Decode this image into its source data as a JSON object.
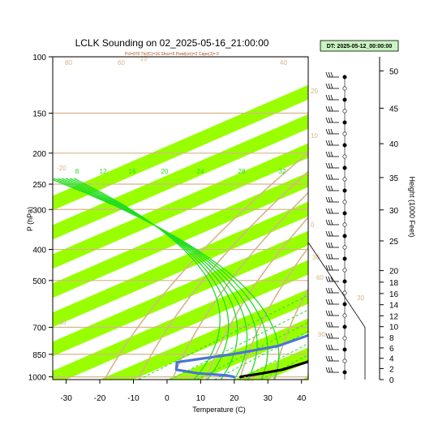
{
  "chart_data": {
    "type": "line",
    "title": "LCLK Sounding on 02_2025-05-16_21:00:00",
    "subtitle": "Pcl=970 Tlcl(C)=16 Shox=6 Pwat(cm)=2 Cape(J)= 0",
    "datetime_badge": "DT: 2025-05-12_00:00:00",
    "xlabel": "Temperature (C)",
    "ylabel": "P (hPa)",
    "y2label": "Height (1000 Feet)",
    "xlim": [
      -34,
      42
    ],
    "ylim": [
      1020,
      100
    ],
    "x_ticks": [
      -30,
      -20,
      -10,
      0,
      10,
      20,
      30,
      40
    ],
    "y_ticks": [
      100,
      150,
      200,
      250,
      300,
      400,
      500,
      700,
      850,
      1000
    ],
    "height_ticks": [
      0,
      2,
      4,
      6,
      8,
      10,
      12,
      14,
      16,
      18,
      20,
      25,
      30,
      35,
      40,
      45,
      50
    ],
    "mixing_ratio_labels": [
      "8",
      "12",
      "16",
      "20",
      "24",
      "28",
      "32"
    ],
    "isotherm_labels": [
      "-30",
      "-20",
      "-10",
      "0",
      "10",
      "20",
      "30"
    ],
    "adiabat_labels": [
      "80",
      "100",
      "60",
      "30",
      "40",
      "60",
      "90"
    ],
    "series": [
      {
        "name": "",
        "color": "#000000",
        "x": [
          20,
          24,
          27.5,
          29.5,
          30,
          29,
          26,
          20,
          15,
          11,
          8,
          5,
          2,
          -1,
          -4,
          -5.5,
          -6,
          -5,
          -1.5,
          3.5,
          8.5,
          10,
          10.5
        ],
        "y": [
          1000,
          975,
          950,
          900,
          850,
          800,
          750,
          700,
          650,
          600,
          550,
          500,
          450,
          400,
          340,
          280,
          230,
          180,
          150,
          130,
          110,
          105,
          100
        ]
      },
      {
        "name": "",
        "color": "#4a74d8",
        "x": [
          18,
          15,
          5,
          -4,
          -9,
          2,
          10,
          11.5,
          12,
          11,
          2,
          -7,
          -13,
          -12,
          -7,
          -4,
          -3,
          -4,
          -7,
          -11,
          -14,
          -15,
          -14,
          -10,
          -5
        ],
        "y": [
          1000,
          990,
          975,
          950,
          900,
          850,
          800,
          750,
          700,
          650,
          600,
          550,
          500,
          450,
          400,
          350,
          300,
          270,
          240,
          200,
          170,
          150,
          130,
          110,
          100
        ]
      }
    ]
  }
}
